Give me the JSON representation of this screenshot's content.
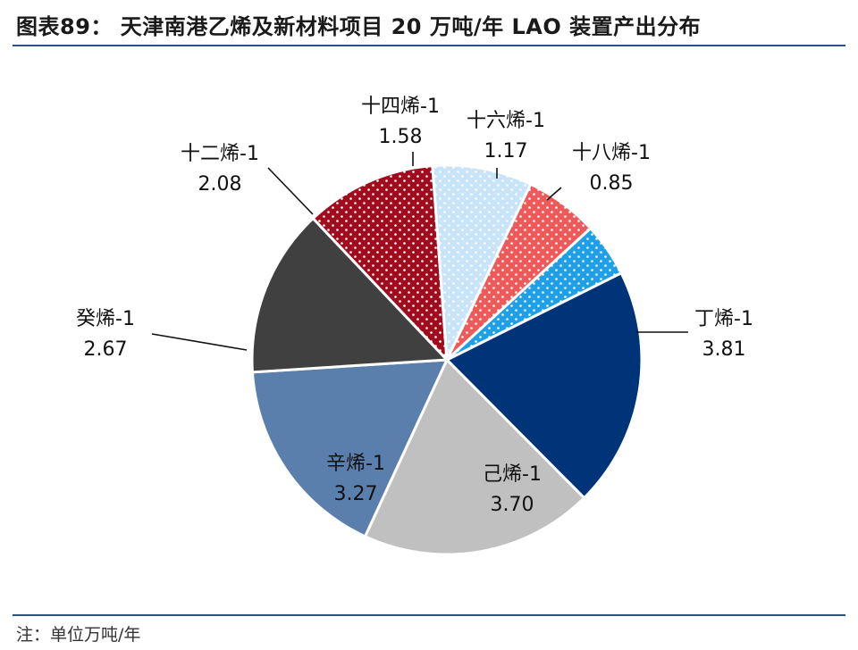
{
  "title": "图表89： 天津南港乙烯及新材料项目 20 万吨/年 LAO 装置产出分布",
  "note": "注：单位万吨/年",
  "chart_data": {
    "type": "pie",
    "unit": "万吨/年",
    "start_angle_deg": 63.5,
    "direction": "clockwise",
    "slices": [
      {
        "name": "丁烯-1",
        "value": 3.81,
        "color": "#003478",
        "pattern": "none"
      },
      {
        "name": "己烯-1",
        "value": 3.7,
        "color": "#c0c0c0",
        "pattern": "none"
      },
      {
        "name": "辛烯-1",
        "value": 3.27,
        "color": "#5b7fad",
        "pattern": "none"
      },
      {
        "name": "癸烯-1",
        "value": 2.67,
        "color": "#404040",
        "pattern": "none"
      },
      {
        "name": "十二烯-1",
        "value": 2.08,
        "color": "#a00c1e",
        "pattern": "dots"
      },
      {
        "name": "十四烯-1",
        "value": 1.58,
        "color": "#c8e4f8",
        "pattern": "dots"
      },
      {
        "name": "十六烯-1",
        "value": 1.17,
        "color": "#ee5a5a",
        "pattern": "dots"
      },
      {
        "name": "十八烯-1",
        "value": 0.85,
        "color": "#1e9fe6",
        "pattern": "dots"
      }
    ]
  }
}
